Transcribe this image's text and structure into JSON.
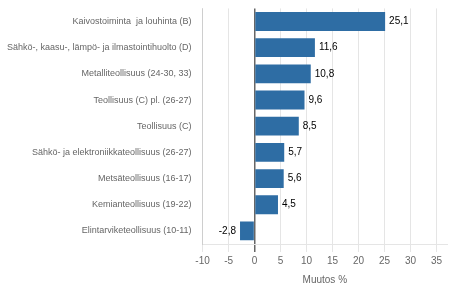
{
  "chart_data": {
    "type": "bar",
    "orientation": "horizontal",
    "categories": [
      "Elintarviketeollisuus (10-11)",
      "Kemianteollisuus (19-22)",
      "Metsäteollisuus (16-17)",
      "Sähkö- ja elektroniikkateollisuus (26-27)",
      "Teollisuus (C)",
      "Teollisuus (C) pl. (26-27)",
      "Metalliteollisuus (24-30, 33)",
      "Sähkö-, kaasu-, lämpö- ja ilmastointihuolto (D)",
      "Kaivostoiminta  ja louhinta (B)"
    ],
    "values": [
      -2.8,
      4.5,
      5.6,
      5.7,
      8.5,
      9.6,
      10.8,
      11.6,
      25.1
    ],
    "value_labels": [
      "-2,8",
      "4,5",
      "5,6",
      "5,7",
      "8,5",
      "9,6",
      "10,8",
      "11,6",
      "25,1"
    ],
    "data_labels": true,
    "color": "#2E6DA4",
    "xlabel": "Muutos %",
    "xlim": [
      -10,
      37
    ],
    "xticks": [
      -10,
      -5,
      0,
      5,
      10,
      15,
      20,
      25,
      30,
      35
    ],
    "grid": true
  }
}
